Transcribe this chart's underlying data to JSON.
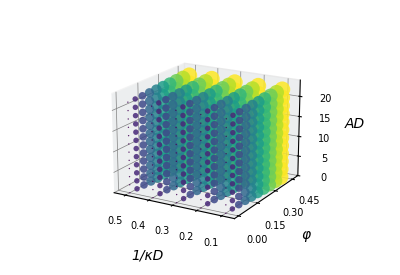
{
  "kD_vals": [
    0.1,
    0.2,
    0.3,
    0.4,
    0.5
  ],
  "phi_vals": [
    0.0,
    0.05,
    0.1,
    0.15,
    0.2,
    0.25,
    0.3,
    0.35,
    0.4,
    0.45
  ],
  "AD_vals_n": 12,
  "AD_min": 0,
  "AD_max": 22,
  "xlabel": "1/κD",
  "ylabel": "φ",
  "zlabel": "AD",
  "xlim": [
    0.05,
    0.55
  ],
  "ylim": [
    -0.03,
    0.5
  ],
  "zlim": [
    0,
    24
  ],
  "colormap": "viridis",
  "min_size": 1,
  "max_size": 130,
  "elev": 18,
  "azim": -60,
  "xticks": [
    0.1,
    0.2,
    0.3,
    0.4,
    0.5
  ],
  "yticks": [
    0.0,
    0.15,
    0.3,
    0.45
  ],
  "zticks": [
    0,
    5,
    10,
    15,
    20
  ],
  "tick_fontsize": 7,
  "label_fontsize": 10,
  "pane_color": "#e8eaec",
  "pane_alpha": 0.8
}
